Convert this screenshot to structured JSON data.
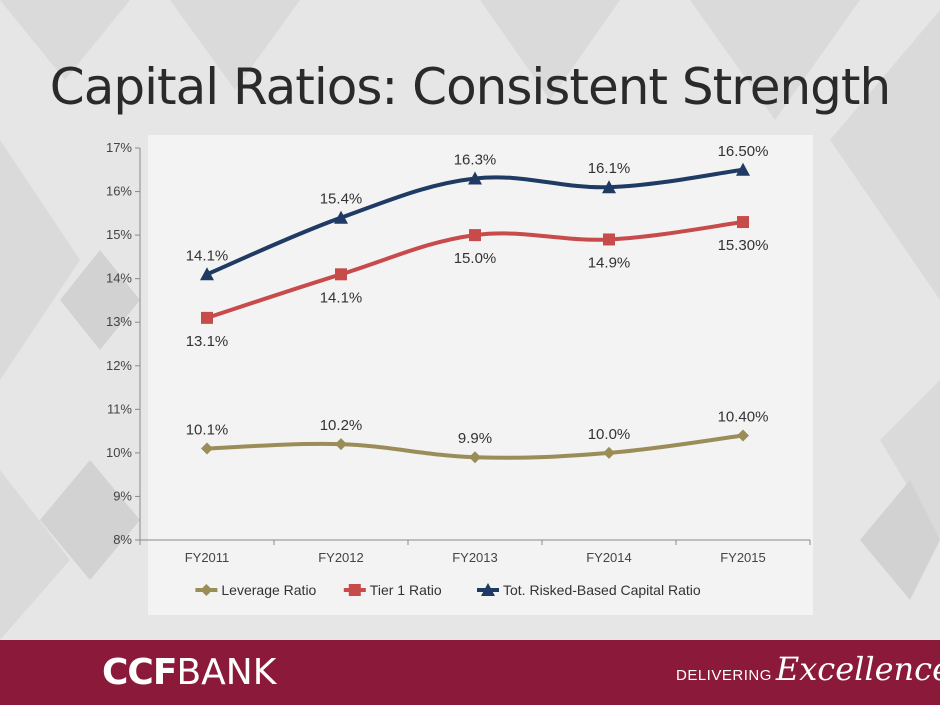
{
  "slide": {
    "title": "Capital Ratios: Consistent Strength"
  },
  "brand": {
    "logo_prefix": "CCF",
    "logo_suffix": "BANK",
    "tagline_word1": "DELIVERING",
    "tagline_word2": "Excellence",
    "footer_color": "#8b1a3a"
  },
  "chart_data": {
    "type": "line",
    "title": "",
    "xlabel": "",
    "ylabel": "",
    "categories": [
      "FY2011",
      "FY2012",
      "FY2013",
      "FY2014",
      "FY2015"
    ],
    "ylim": [
      8,
      17
    ],
    "yticks": [
      "8%",
      "9%",
      "10%",
      "11%",
      "12%",
      "13%",
      "14%",
      "15%",
      "16%",
      "17%"
    ],
    "grid": false,
    "legend": "bottom",
    "series": [
      {
        "name": "Leverage Ratio",
        "color": "#9b8d58",
        "marker": "diamond",
        "values": [
          10.1,
          10.2,
          9.9,
          10.0,
          10.4
        ],
        "labels": [
          "10.1%",
          "10.2%",
          "9.9%",
          "10.0%",
          "10.40%"
        ],
        "label_pos": [
          "above",
          "above",
          "above",
          "above",
          "above"
        ]
      },
      {
        "name": "Tier 1 Ratio",
        "color": "#c84b4b",
        "marker": "square",
        "values": [
          13.1,
          14.1,
          15.0,
          14.9,
          15.3
        ],
        "labels": [
          "13.1%",
          "14.1%",
          "15.0%",
          "14.9%",
          "15.30%"
        ],
        "label_pos": [
          "below",
          "below",
          "below",
          "below",
          "below"
        ]
      },
      {
        "name": "Tot. Risked-Based Capital Ratio",
        "color": "#1f3a63",
        "marker": "triangle",
        "values": [
          14.1,
          15.4,
          16.3,
          16.1,
          16.5
        ],
        "labels": [
          "14.1%",
          "15.4%",
          "16.3%",
          "16.1%",
          "16.50%"
        ],
        "label_pos": [
          "above",
          "above",
          "above",
          "above",
          "above"
        ]
      }
    ]
  }
}
